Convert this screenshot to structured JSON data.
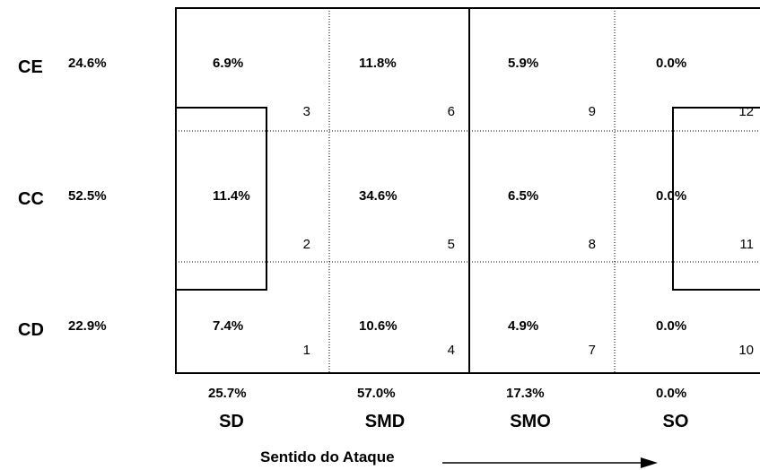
{
  "rows": [
    {
      "label": "CE",
      "total": "24.6%"
    },
    {
      "label": "CC",
      "total": "52.5%"
    },
    {
      "label": "CD",
      "total": "22.9%"
    }
  ],
  "columns": [
    {
      "label": "SD",
      "total": "25.7%"
    },
    {
      "label": "SMD",
      "total": "57.0%"
    },
    {
      "label": "SMO",
      "total": "17.3%"
    },
    {
      "label": "SO",
      "total": "0.0%"
    }
  ],
  "cells": [
    [
      {
        "value": "6.9%",
        "zone": "3"
      },
      {
        "value": "11.8%",
        "zone": "6"
      },
      {
        "value": "5.9%",
        "zone": "9"
      },
      {
        "value": "0.0%",
        "zone": "12"
      }
    ],
    [
      {
        "value": "11.4%",
        "zone": "2"
      },
      {
        "value": "34.6%",
        "zone": "5"
      },
      {
        "value": "6.5%",
        "zone": "8"
      },
      {
        "value": "0.0%",
        "zone": "11"
      }
    ],
    [
      {
        "value": "7.4%",
        "zone": "1"
      },
      {
        "value": "10.6%",
        "zone": "4"
      },
      {
        "value": "4.9%",
        "zone": "7"
      },
      {
        "value": "0.0%",
        "zone": "10"
      }
    ]
  ],
  "axis_title": "Sentido do Ataque"
}
